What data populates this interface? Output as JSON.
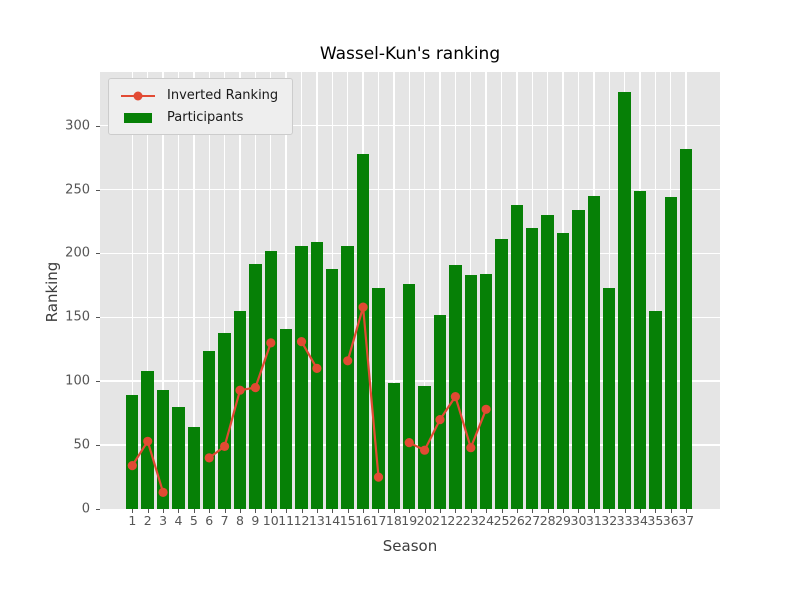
{
  "title": "Wassel-Kun's ranking",
  "xlabel": "Season",
  "ylabel": "Ranking",
  "legend": {
    "line_label": "Inverted Ranking",
    "bar_label": "Participants"
  },
  "colors": {
    "bar": "#068006",
    "line": "#E24A33",
    "axes_bg": "#e5e5e5",
    "grid": "#ffffff",
    "tick_text": "#555555"
  },
  "y_ticks": [
    0,
    50,
    100,
    150,
    200,
    250,
    300
  ],
  "chart_data": {
    "type": "bar+line",
    "title": "Wassel-Kun's ranking",
    "xlabel": "Season",
    "ylabel": "Ranking",
    "ylim": [
      0,
      342
    ],
    "grid": true,
    "legend_position": "upper left",
    "categories": [
      1,
      2,
      3,
      4,
      5,
      6,
      7,
      8,
      9,
      10,
      11,
      12,
      13,
      14,
      15,
      16,
      17,
      18,
      19,
      20,
      21,
      22,
      23,
      24,
      25,
      26,
      27,
      28,
      29,
      30,
      31,
      32,
      33,
      34,
      35,
      36,
      37
    ],
    "series": [
      {
        "name": "Participants",
        "type": "bar",
        "color": "#068006",
        "values": [
          89,
          108,
          93,
          80,
          64,
          124,
          138,
          155,
          192,
          202,
          141,
          206,
          209,
          188,
          206,
          278,
          173,
          99,
          176,
          96,
          152,
          191,
          183,
          184,
          211,
          238,
          220,
          230,
          216,
          234,
          245,
          173,
          326,
          249,
          155,
          244,
          282
        ]
      },
      {
        "name": "Inverted Ranking",
        "type": "line",
        "color": "#E24A33",
        "values": [
          34,
          53,
          13,
          null,
          null,
          40,
          49,
          93,
          95,
          130,
          null,
          131,
          110,
          null,
          116,
          158,
          25,
          null,
          52,
          46,
          70,
          88,
          48,
          78,
          null,
          null,
          null,
          null,
          null,
          null,
          null,
          null,
          null,
          null,
          null,
          null,
          null
        ]
      }
    ]
  }
}
